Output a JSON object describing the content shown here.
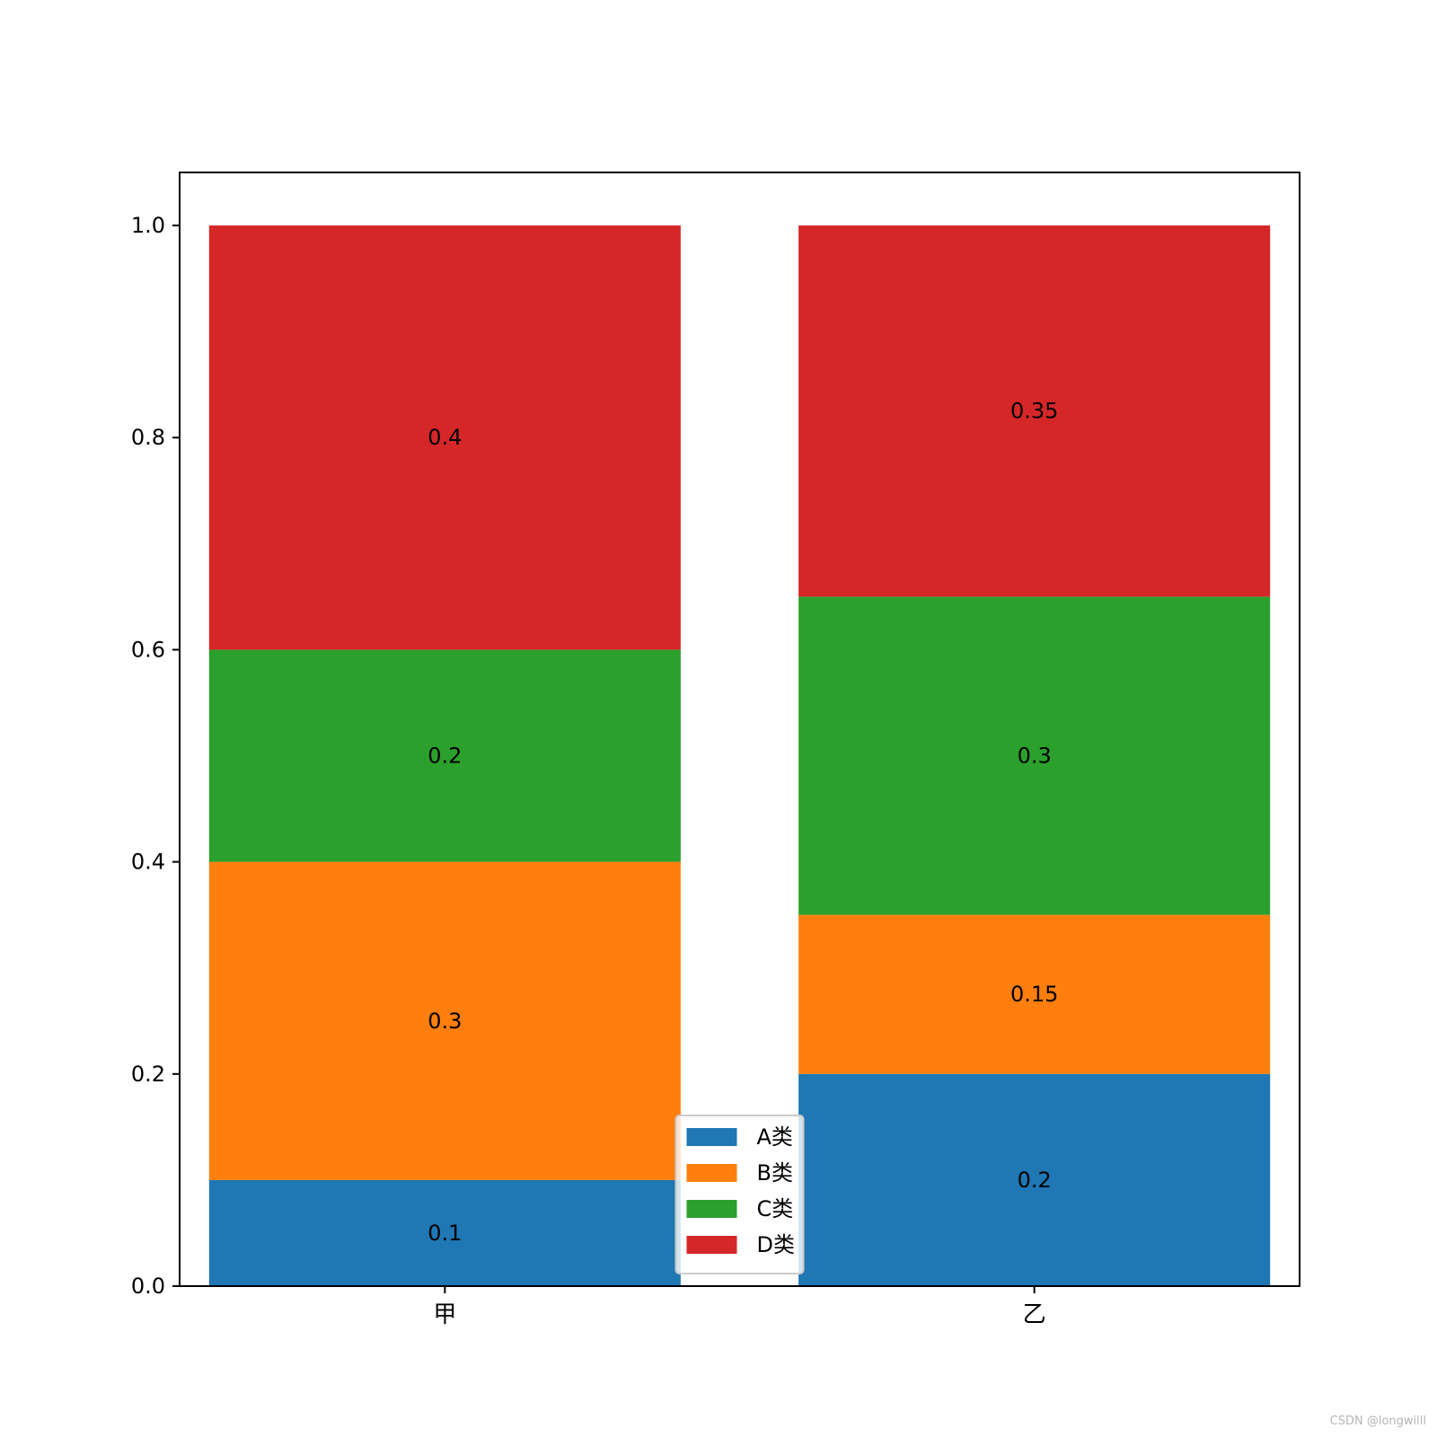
{
  "chart_data": {
    "type": "bar",
    "stacked": true,
    "categories": [
      "甲",
      "乙"
    ],
    "series": [
      {
        "name": "A类",
        "values": [
          0.1,
          0.2
        ],
        "color": "#1f77b4",
        "labels": [
          "0.1",
          "0.2"
        ]
      },
      {
        "name": "B类",
        "values": [
          0.3,
          0.15
        ],
        "color": "#ff7f0e",
        "labels": [
          "0.3",
          "0.15"
        ]
      },
      {
        "name": "C类",
        "values": [
          0.2,
          0.3
        ],
        "color": "#2ca02c",
        "labels": [
          "0.2",
          "0.3"
        ]
      },
      {
        "name": "D类",
        "values": [
          0.4,
          0.35
        ],
        "color": "#d62728",
        "labels": [
          "0.4",
          "0.35"
        ]
      }
    ],
    "yticks": [
      "0.0",
      "0.2",
      "0.4",
      "0.6",
      "0.8",
      "1.0"
    ],
    "ylim": [
      0,
      1.05
    ],
    "legend_position": "lower-center",
    "grid": false
  },
  "watermark": "CSDN @longwilll"
}
